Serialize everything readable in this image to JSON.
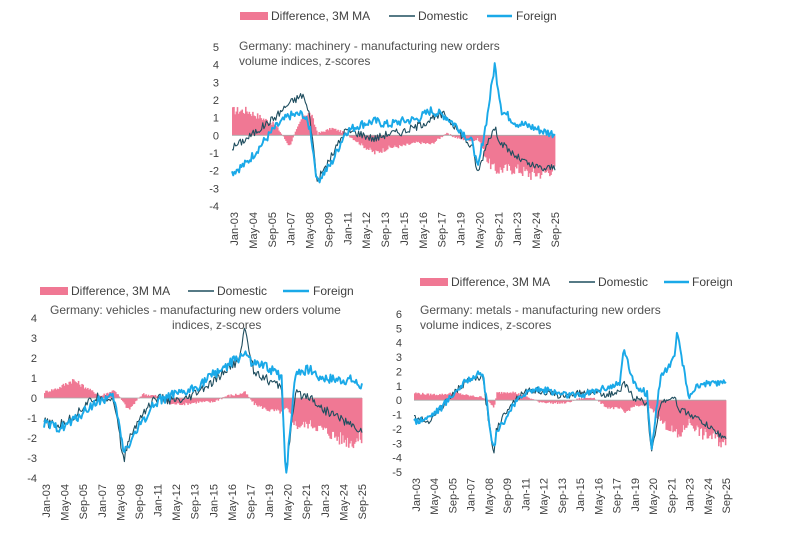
{
  "colors": {
    "difference": "#f07894",
    "domestic": "#1f4e5f",
    "foreign": "#1aa9e8"
  },
  "chart_data": [
    {
      "type": "line",
      "title": "Germany: machinery - manufacturing new orders volume indices, z-scores",
      "title_lines": [
        "Germany: machinery - manufacturing new orders",
        "volume indices, z-scores"
      ],
      "legend": [
        "Difference, 3M MA",
        "Domestic",
        "Foreign"
      ],
      "ylim": [
        -4,
        5
      ],
      "yticks": [
        5,
        4,
        3,
        2,
        1,
        0,
        -1,
        -2,
        -3,
        -4
      ],
      "x_tick_labels": [
        "Jan-03",
        "May-04",
        "Sep-05",
        "Jan-07",
        "May-08",
        "Sep-09",
        "Jan-11",
        "May-12",
        "Sep-13",
        "Jan-15",
        "May-16",
        "Sep-17",
        "Jan-19",
        "May-20",
        "Sep-21",
        "Jan-23",
        "May-24",
        "Sep-25"
      ],
      "x": [
        2003,
        2004,
        2005,
        2006,
        2007,
        2008,
        2008.5,
        2009,
        2010,
        2011,
        2012,
        2013,
        2014,
        2015,
        2016,
        2017,
        2018,
        2019,
        2020,
        2020.3,
        2021,
        2021.5,
        2022,
        2023,
        2024,
        2025,
        2025.6
      ],
      "series": [
        {
          "name": "Domestic",
          "values": [
            -0.7,
            -0.2,
            0.4,
            1.0,
            1.8,
            2.3,
            1.0,
            -2.6,
            -1.2,
            0.3,
            0.1,
            -0.2,
            0.1,
            0.2,
            0.5,
            0.9,
            1.2,
            0.2,
            -0.8,
            -2.2,
            -0.3,
            0.4,
            -0.5,
            -1.2,
            -1.7,
            -1.9,
            -1.8
          ]
        },
        {
          "name": "Foreign",
          "values": [
            -2.1,
            -1.6,
            -0.6,
            0.4,
            1.1,
            1.2,
            0.4,
            -2.6,
            -1.6,
            0.2,
            0.6,
            0.8,
            0.6,
            0.8,
            0.9,
            1.4,
            1.1,
            0.4,
            -0.5,
            -2.0,
            1.2,
            4.0,
            1.4,
            0.7,
            0.5,
            0.2,
            0.1
          ]
        },
        {
          "name": "Difference, 3M MA",
          "values": [
            1.4,
            1.4,
            1.0,
            0.6,
            -0.6,
            1.2,
            1.2,
            0.1,
            0.4,
            0.1,
            -0.5,
            -1.0,
            -0.7,
            -0.6,
            -0.4,
            -0.5,
            0.1,
            -0.2,
            -0.3,
            -0.2,
            -1.5,
            -2.0,
            -1.9,
            -1.9,
            -2.2,
            -2.1,
            -1.9
          ]
        }
      ]
    },
    {
      "type": "line",
      "title": "Germany: vehicles - manufacturing new orders volume indices, z-scores",
      "title_lines": [
        "Germany: vehicles - manufacturing new orders volume",
        "indices, z-scores"
      ],
      "legend": [
        "Difference, 3M MA",
        "Domestic",
        "Foreign"
      ],
      "ylim": [
        -4,
        4
      ],
      "yticks": [
        4,
        3,
        2,
        1,
        0,
        -1,
        -2,
        -3,
        -4
      ],
      "x_tick_labels": [
        "Jan-03",
        "May-04",
        "Sep-05",
        "Jan-07",
        "May-08",
        "Sep-09",
        "Jan-11",
        "May-12",
        "Sep-13",
        "Jan-15",
        "May-16",
        "Sep-17",
        "Jan-19",
        "May-20",
        "Sep-21",
        "Jan-23",
        "May-24",
        "Sep-25"
      ],
      "x": [
        2003,
        2004,
        2005,
        2006,
        2007,
        2008,
        2008.7,
        2009,
        2010,
        2011,
        2012,
        2013,
        2014,
        2015,
        2016,
        2017,
        2017.3,
        2018,
        2019,
        2020,
        2020.3,
        2021,
        2022,
        2023,
        2024,
        2025,
        2025.6
      ],
      "series": [
        {
          "name": "Domestic",
          "values": [
            -1.2,
            -1.4,
            -1.0,
            -0.3,
            0.1,
            -0.1,
            -3.2,
            -2.2,
            -0.8,
            0.0,
            -0.1,
            -0.2,
            0.3,
            0.7,
            1.4,
            1.9,
            3.6,
            1.4,
            0.9,
            0.5,
            -3.7,
            0.2,
            0.1,
            -0.6,
            -0.9,
            -1.4,
            -1.6
          ]
        },
        {
          "name": "Foreign",
          "values": [
            -1.3,
            -1.5,
            -1.2,
            -0.6,
            -0.1,
            0.0,
            -2.6,
            -2.4,
            -1.2,
            -0.2,
            0.1,
            0.2,
            0.6,
            1.1,
            1.6,
            2.0,
            2.3,
            1.7,
            1.5,
            1.1,
            -4.0,
            1.3,
            1.4,
            1.0,
            0.9,
            0.9,
            0.6
          ]
        },
        {
          "name": "Difference, 3M MA",
          "values": [
            0.3,
            0.5,
            0.9,
            0.5,
            0.1,
            0.4,
            -0.3,
            -0.6,
            0.2,
            0.1,
            -0.3,
            -0.3,
            -0.2,
            -0.2,
            0.1,
            0.2,
            0.3,
            -0.3,
            -0.6,
            -0.7,
            -0.5,
            -1.4,
            -1.3,
            -1.6,
            -2.0,
            -2.2,
            -2.0
          ]
        }
      ]
    },
    {
      "type": "line",
      "title": "Germany: metals - manufacturing new orders volume indices, z-scores",
      "title_lines": [
        "Germany: metals - manufacturing new orders",
        "volume indices, z-scores"
      ],
      "legend": [
        "Difference, 3M MA",
        "Domestic",
        "Foreign"
      ],
      "ylim": [
        -5,
        6
      ],
      "yticks": [
        6,
        5,
        4,
        3,
        2,
        1,
        0,
        -1,
        -2,
        -3,
        -4,
        -5
      ],
      "x_tick_labels": [
        "Jan-03",
        "May-04",
        "Sep-05",
        "Jan-07",
        "May-08",
        "Sep-09",
        "Jan-11",
        "May-12",
        "Sep-13",
        "Jan-15",
        "May-16",
        "Sep-17",
        "Jan-19",
        "May-20",
        "Sep-21",
        "Jan-23",
        "May-24",
        "Sep-25"
      ],
      "x": [
        2003,
        2004,
        2005,
        2006,
        2007,
        2008,
        2008.8,
        2009,
        2010,
        2011,
        2012,
        2013,
        2014,
        2015,
        2016,
        2017,
        2018,
        2018.3,
        2019,
        2020,
        2020.3,
        2021,
        2022,
        2022.2,
        2023,
        2024,
        2025,
        2025.6
      ],
      "series": [
        {
          "name": "Domestic",
          "values": [
            -1.2,
            -1.5,
            -0.5,
            0.6,
            1.4,
            1.6,
            -3.8,
            -2.0,
            -0.3,
            0.6,
            0.7,
            0.4,
            0.3,
            0.5,
            0.6,
            0.4,
            0.5,
            1.2,
            0.2,
            -0.2,
            -3.8,
            -0.1,
            0.3,
            -0.6,
            -0.9,
            -1.5,
            -2.2,
            -2.6
          ]
        },
        {
          "name": "Foreign",
          "values": [
            -1.5,
            -1.2,
            -0.5,
            0.6,
            1.5,
            1.9,
            -3.6,
            -2.4,
            -0.7,
            0.5,
            0.8,
            0.6,
            0.4,
            0.3,
            0.6,
            0.9,
            1.1,
            3.7,
            1.2,
            0.4,
            -3.5,
            1.7,
            2.9,
            4.8,
            0.3,
            1.2,
            1.1,
            1.4
          ]
        },
        {
          "name": "Difference, 3M MA",
          "values": [
            0.5,
            0.4,
            0.4,
            0.5,
            0.3,
            0.2,
            -0.5,
            0.5,
            0.6,
            0.3,
            -0.1,
            -0.2,
            -0.2,
            0.1,
            0.2,
            -0.5,
            -0.6,
            -0.9,
            -0.4,
            -0.4,
            -0.6,
            -1.5,
            -2.3,
            -2.6,
            -1.5,
            -2.4,
            -2.6,
            -3.2
          ]
        }
      ]
    }
  ]
}
